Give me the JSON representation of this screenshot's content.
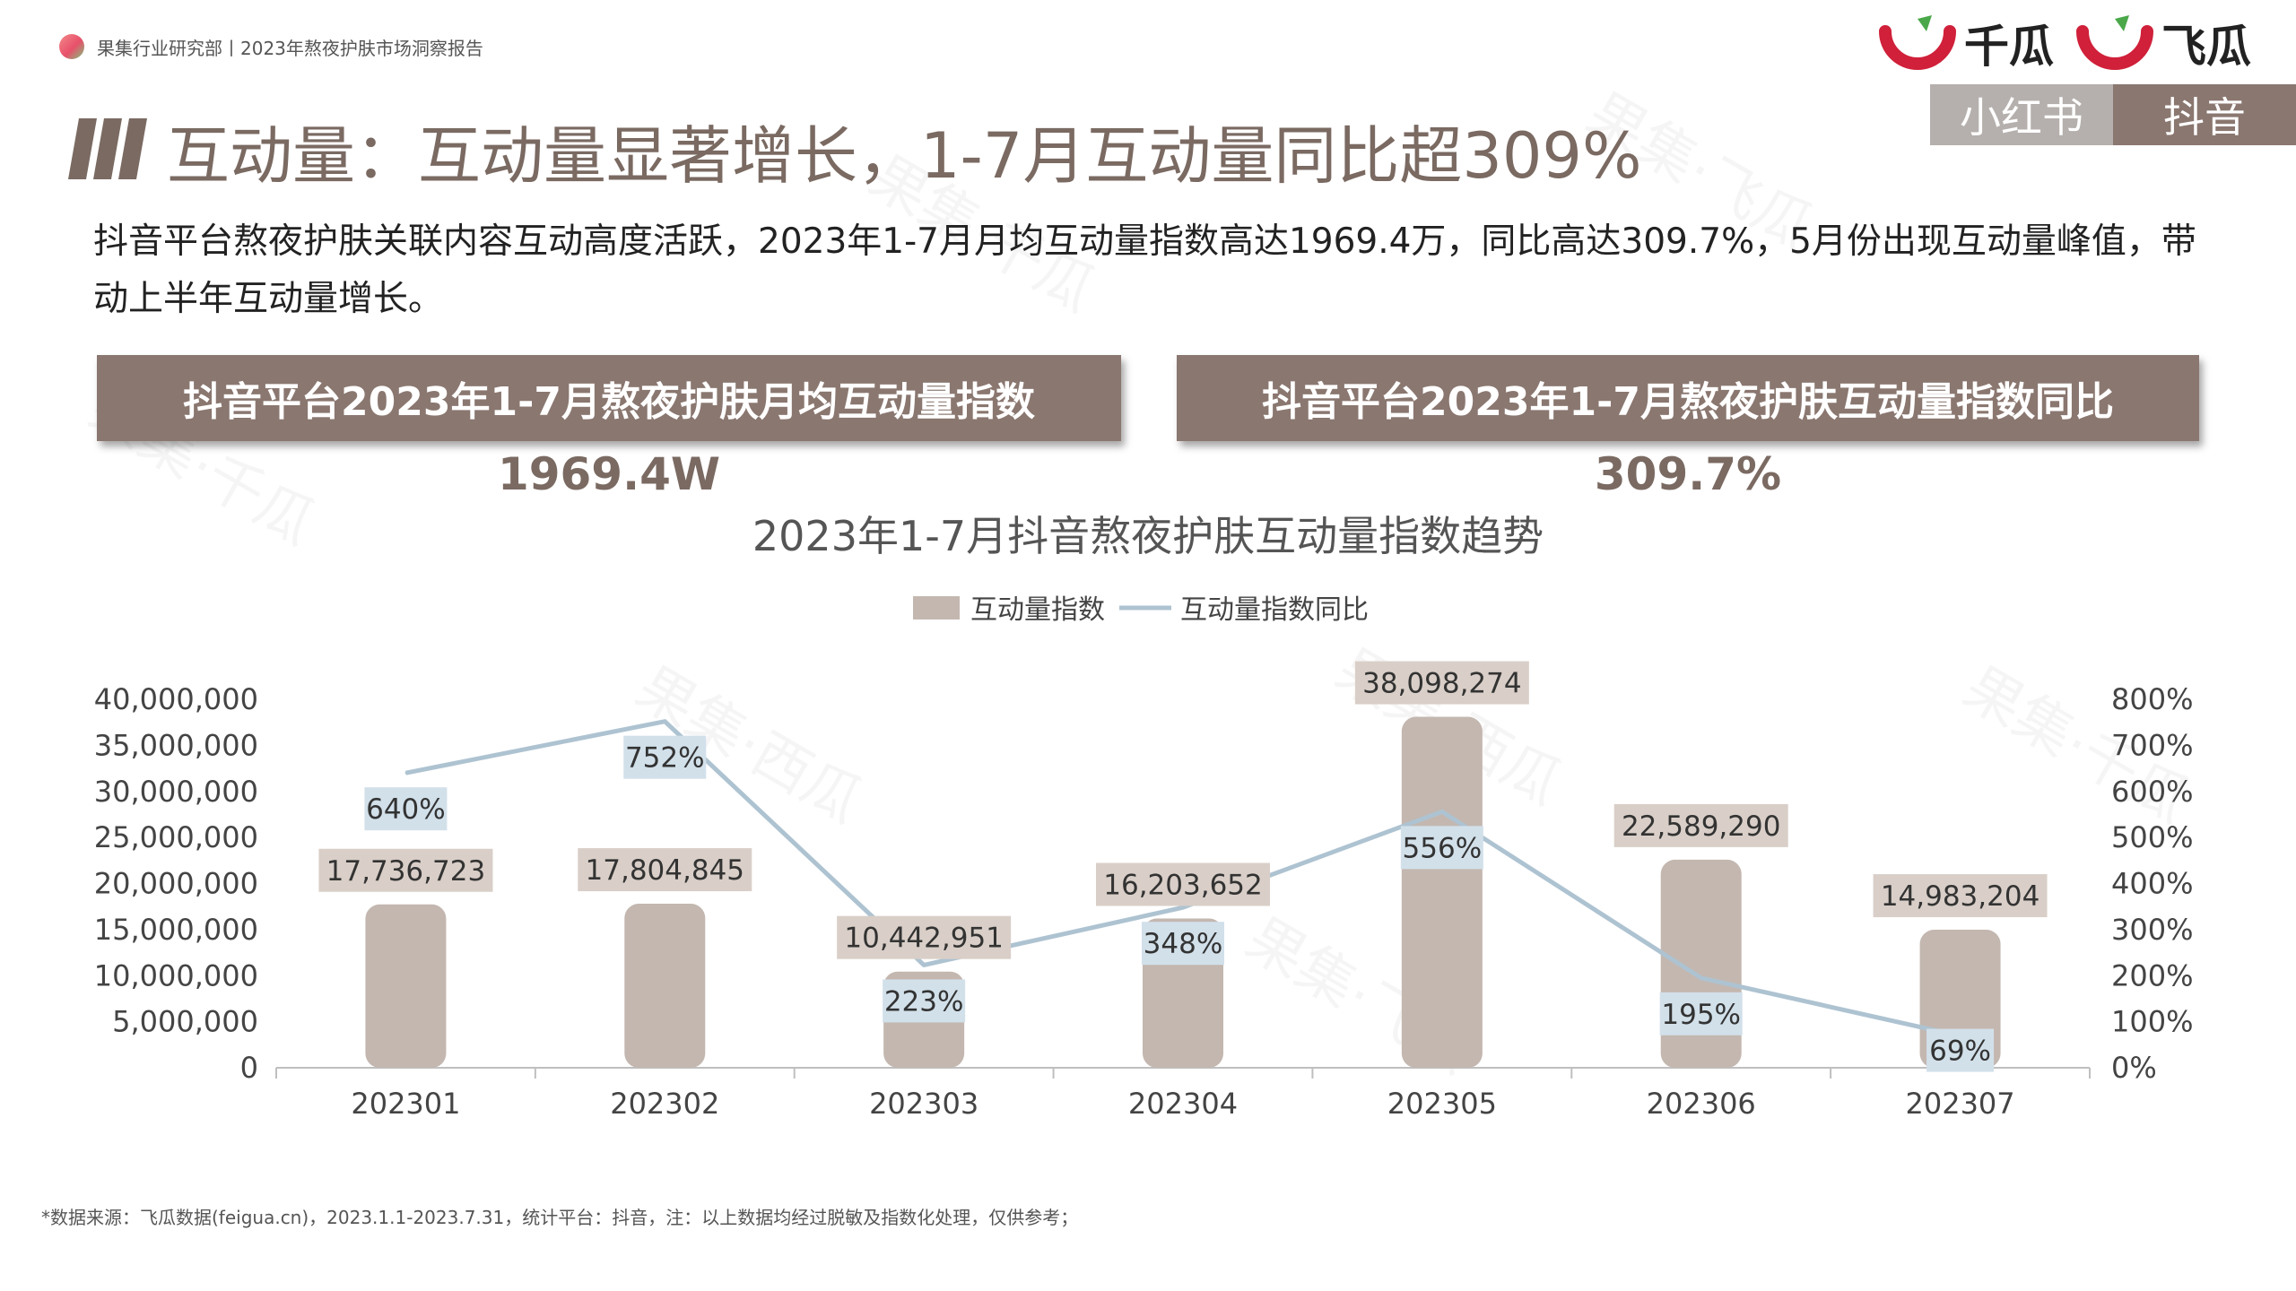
{
  "header": {
    "source_line": "果集行业研究部丨2023年熬夜护肤市场洞察报告"
  },
  "logos": [
    {
      "name": "千瓜"
    },
    {
      "name": "飞瓜"
    }
  ],
  "platform_tabs": [
    {
      "label": "小红书",
      "active": false,
      "color": "#b5b0ad"
    },
    {
      "label": "抖音",
      "active": true,
      "color": "#8a7770"
    }
  ],
  "page_title": "互动量：互动量显著增长，1-7月互动量同比超309%",
  "intro_text": "抖音平台熬夜护肤关联内容互动高度活跃，2023年1-7月月均互动量指数高达1969.4万，同比高达309.7%，5月份出现互动量峰值，带动上半年互动量增长。",
  "kpis": [
    {
      "label": "抖音平台2023年1-7月熬夜护肤月均互动量指数",
      "value": "1969.4W"
    },
    {
      "label": "抖音平台2023年1-7月熬夜护肤互动量指数同比",
      "value": "309.7%"
    }
  ],
  "chart_data": {
    "type": "bar",
    "title": "2023年1-7月抖音熬夜护肤互动量指数趋势",
    "categories": [
      "202301",
      "202302",
      "202303",
      "202304",
      "202305",
      "202306",
      "202307"
    ],
    "series": [
      {
        "name": "互动量指数",
        "type": "bar",
        "axis": "left",
        "values": [
          17736723,
          17804845,
          10442951,
          16203652,
          38098274,
          22589290,
          14983204
        ],
        "labels": [
          "17,736,723",
          "17,804,845",
          "10,442,951",
          "16,203,652",
          "38,098,274",
          "22,589,290",
          "14,983,204"
        ],
        "color": "#c3b7b0"
      },
      {
        "name": "互动量指数同比",
        "type": "line",
        "axis": "right",
        "values": [
          640,
          752,
          223,
          348,
          556,
          195,
          69
        ],
        "labels": [
          "640%",
          "752%",
          "223%",
          "348%",
          "556%",
          "195%",
          "69%"
        ],
        "color": "#aec3d1"
      }
    ],
    "y_left": {
      "min": 0,
      "max": 40000000,
      "ticks": [
        "0",
        "5,000,000",
        "10,000,000",
        "15,000,000",
        "20,000,000",
        "25,000,000",
        "30,000,000",
        "35,000,000",
        "40,000,000"
      ]
    },
    "y_right": {
      "min": 0,
      "max": 800,
      "ticks": [
        "0%",
        "100%",
        "200%",
        "300%",
        "400%",
        "500%",
        "600%",
        "700%",
        "800%"
      ]
    },
    "legend_position": "top-center",
    "grid": false
  },
  "footnote": "*数据来源：飞瓜数据(feigua.cn)，2023.1.1-2023.7.31，统计平台：抖音，注：以上数据均经过脱敏及指数化处理，仅供参考；",
  "watermark_text": [
    "果集·千瓜",
    "果集·西瓜",
    "果集·飞瓜"
  ]
}
